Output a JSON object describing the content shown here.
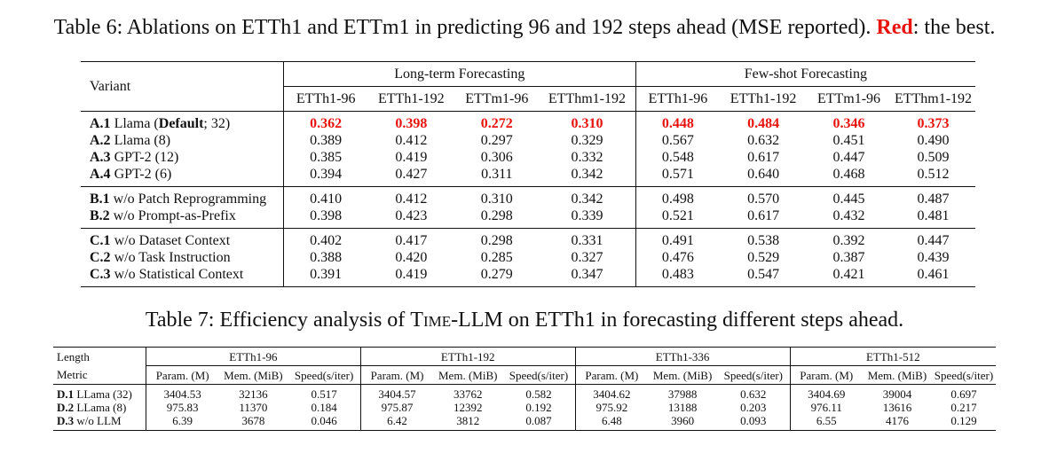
{
  "table6": {
    "caption_prefix": "Table 6: Ablations on ETTh1 and ETTm1 in predicting 96 and 192 steps ahead (MSE reported).",
    "caption_red": "Red",
    "caption_suffix": ": the best.",
    "variant_header": "Variant",
    "group_headers": [
      "Long-term Forecasting",
      "Few-shot Forecasting"
    ],
    "columns": [
      "ETTh1-96",
      "ETTh1-192",
      "ETTm1-96",
      "ETThm1-192",
      "ETTh1-96",
      "ETTh1-192",
      "ETTm1-96",
      "ETThm1-192"
    ],
    "rows": [
      {
        "id": "A.1",
        "name": "Llama (",
        "bold": "Default",
        "rest": "; 32)",
        "values": [
          "0.362",
          "0.398",
          "0.272",
          "0.310",
          "0.448",
          "0.484",
          "0.346",
          "0.373"
        ],
        "best": true
      },
      {
        "id": "A.2",
        "name": "Llama (8)",
        "values": [
          "0.389",
          "0.412",
          "0.297",
          "0.329",
          "0.567",
          "0.632",
          "0.451",
          "0.490"
        ]
      },
      {
        "id": "A.3",
        "name": "GPT-2 (12)",
        "values": [
          "0.385",
          "0.419",
          "0.306",
          "0.332",
          "0.548",
          "0.617",
          "0.447",
          "0.509"
        ]
      },
      {
        "id": "A.4",
        "name": "GPT-2 (6)",
        "values": [
          "0.394",
          "0.427",
          "0.311",
          "0.342",
          "0.571",
          "0.640",
          "0.468",
          "0.512"
        ]
      },
      {
        "id": "B.1",
        "name": "w/o Patch Reprogramming",
        "values": [
          "0.410",
          "0.412",
          "0.310",
          "0.342",
          "0.498",
          "0.570",
          "0.445",
          "0.487"
        ]
      },
      {
        "id": "B.2",
        "name": "w/o Prompt-as-Prefix",
        "values": [
          "0.398",
          "0.423",
          "0.298",
          "0.339",
          "0.521",
          "0.617",
          "0.432",
          "0.481"
        ]
      },
      {
        "id": "C.1",
        "name": "w/o Dataset Context",
        "values": [
          "0.402",
          "0.417",
          "0.298",
          "0.331",
          "0.491",
          "0.538",
          "0.392",
          "0.447"
        ]
      },
      {
        "id": "C.2",
        "name": "w/o Task Instruction",
        "values": [
          "0.388",
          "0.420",
          "0.285",
          "0.327",
          "0.476",
          "0.529",
          "0.387",
          "0.439"
        ]
      },
      {
        "id": "C.3",
        "name": "w/o Statistical Context",
        "values": [
          "0.391",
          "0.419",
          "0.279",
          "0.347",
          "0.483",
          "0.547",
          "0.421",
          "0.461"
        ]
      }
    ]
  },
  "table7": {
    "caption_prefix": "Table 7: Efficiency analysis of ",
    "caption_model": "Time-LLM",
    "caption_suffix": " on ETTh1 in forecasting different steps ahead.",
    "length_label": "Length",
    "metric_label": "Metric",
    "groups": [
      "ETTh1-96",
      "ETTh1-192",
      "ETTh1-336",
      "ETTh1-512"
    ],
    "metrics": [
      "Param. (M)",
      "Mem. (MiB)",
      "Speed(s/iter)"
    ],
    "rows": [
      {
        "id": "D.1",
        "name": "LLama (32)",
        "values": [
          "3404.53",
          "32136",
          "0.517",
          "3404.57",
          "33762",
          "0.582",
          "3404.62",
          "37988",
          "0.632",
          "3404.69",
          "39004",
          "0.697"
        ]
      },
      {
        "id": "D.2",
        "name": "LLama (8)",
        "values": [
          "975.83",
          "11370",
          "0.184",
          "975.87",
          "12392",
          "0.192",
          "975.92",
          "13188",
          "0.203",
          "976.11",
          "13616",
          "0.217"
        ]
      },
      {
        "id": "D.3",
        "name": "w/o LLM",
        "values": [
          "6.39",
          "3678",
          "0.046",
          "6.42",
          "3812",
          "0.087",
          "6.48",
          "3960",
          "0.093",
          "6.55",
          "4176",
          "0.129"
        ]
      }
    ]
  },
  "colors": {
    "best": "#e8130d",
    "text": "#111111"
  }
}
